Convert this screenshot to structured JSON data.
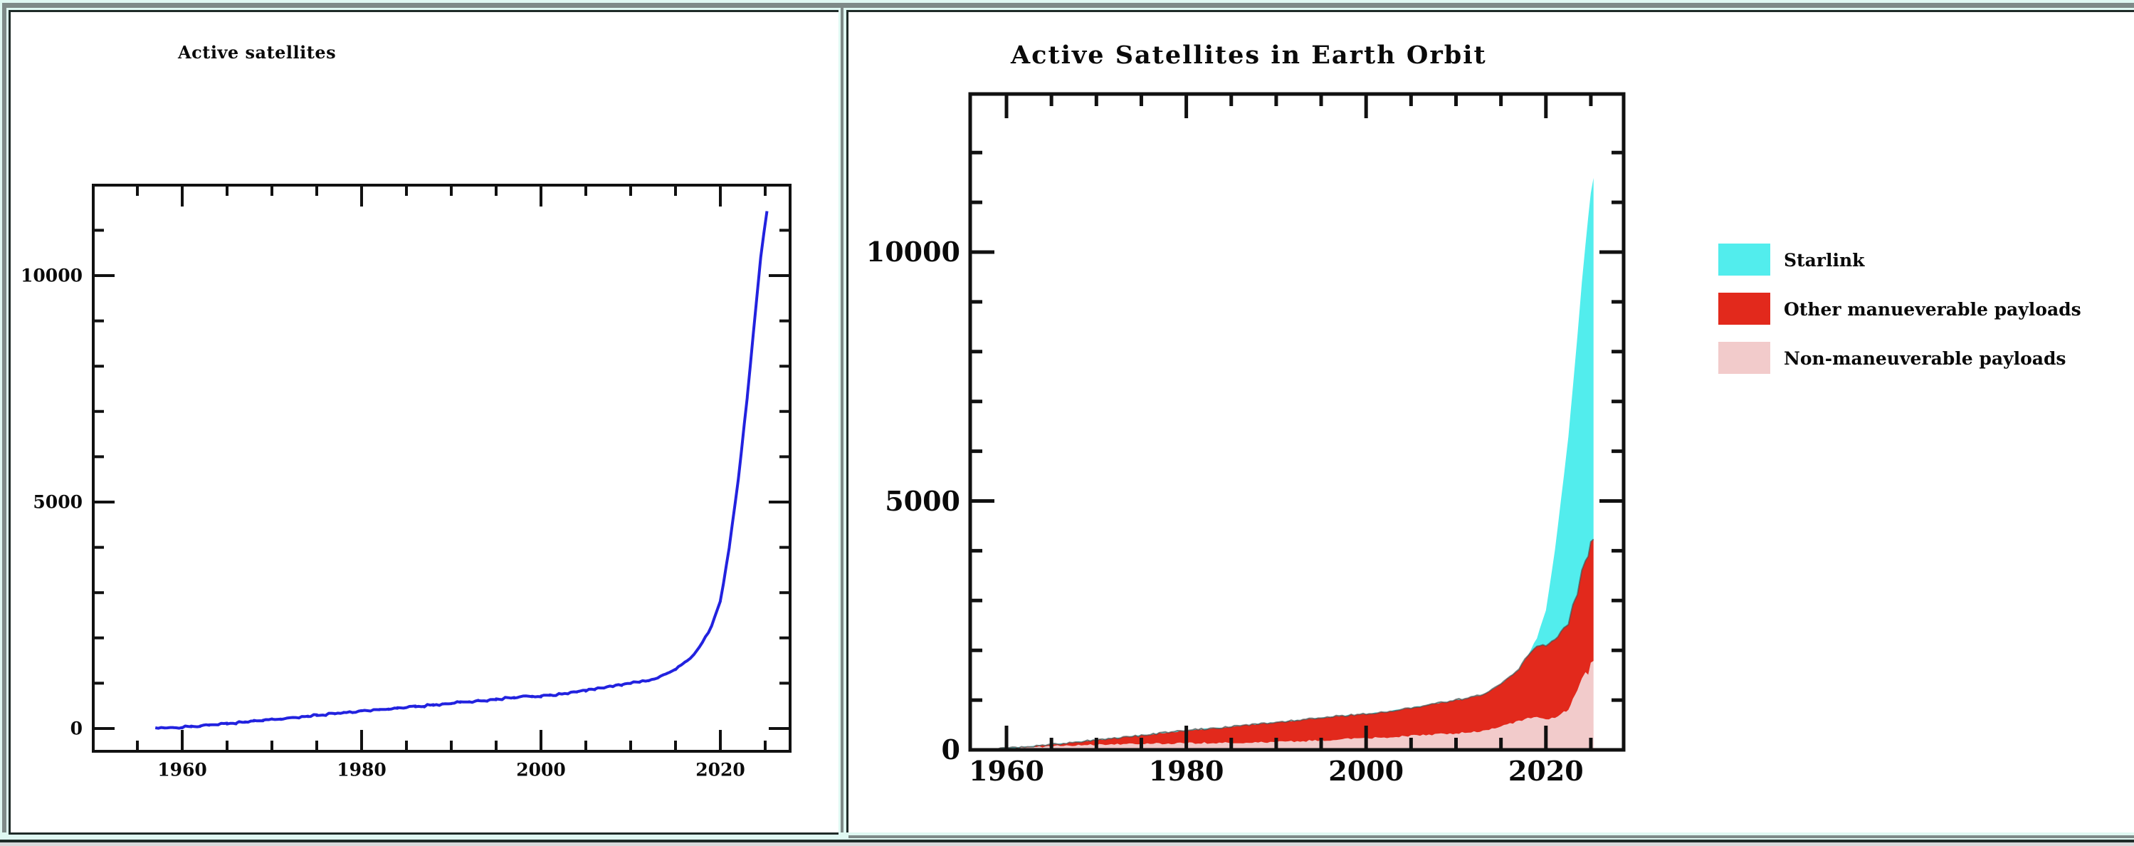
{
  "colors": {
    "background": "#dff8f2",
    "screen_frame_gray": "#7e8a88",
    "window_border_dark": "#1f2b28",
    "bottom_strip_gray": "#d8dadb",
    "line_blue": "#2222df",
    "starlink_cyan": "#52eded",
    "other_red": "#e2291c",
    "non_maneuverable_pink": "#f2cbcb"
  },
  "left_window": {
    "title": "Active satellites",
    "chart_data": {
      "type": "line",
      "title": "Active satellites",
      "xlabel": "",
      "ylabel": "",
      "x_tick_labels": [
        "1960",
        "1980",
        "2000",
        "2020"
      ],
      "y_tick_labels": [
        "0",
        "5000",
        "10000"
      ],
      "xlim": [
        1950.1,
        2027.8
      ],
      "ylim": [
        -500,
        12000
      ],
      "grid": false,
      "series": [
        {
          "name": "active satellites",
          "color": "#2222df",
          "points": [
            [
              1957,
              5
            ],
            [
              1958,
              10
            ],
            [
              1959,
              18
            ],
            [
              1960,
              30
            ],
            [
              1961,
              45
            ],
            [
              1962,
              60
            ],
            [
              1963,
              75
            ],
            [
              1964,
              90
            ],
            [
              1965,
              105
            ],
            [
              1966,
              125
            ],
            [
              1967,
              148
            ],
            [
              1968,
              168
            ],
            [
              1969,
              185
            ],
            [
              1970,
              200
            ],
            [
              1971,
              215
            ],
            [
              1972,
              230
            ],
            [
              1973,
              250
            ],
            [
              1974,
              270
            ],
            [
              1975,
              290
            ],
            [
              1976,
              310
            ],
            [
              1977,
              330
            ],
            [
              1978,
              350
            ],
            [
              1979,
              370
            ],
            [
              1980,
              390
            ],
            [
              1981,
              405
            ],
            [
              1982,
              420
            ],
            [
              1983,
              435
            ],
            [
              1984,
              450
            ],
            [
              1985,
              470
            ],
            [
              1986,
              485
            ],
            [
              1987,
              500
            ],
            [
              1988,
              515
            ],
            [
              1989,
              535
            ],
            [
              1990,
              555
            ],
            [
              1991,
              575
            ],
            [
              1992,
              590
            ],
            [
              1993,
              605
            ],
            [
              1994,
              625
            ],
            [
              1995,
              645
            ],
            [
              1996,
              665
            ],
            [
              1997,
              685
            ],
            [
              1998,
              700
            ],
            [
              1999,
              710
            ],
            [
              2000,
              720
            ],
            [
              2001,
              740
            ],
            [
              2002,
              760
            ],
            [
              2003,
              780
            ],
            [
              2004,
              810
            ],
            [
              2005,
              845
            ],
            [
              2006,
              880
            ],
            [
              2007,
              910
            ],
            [
              2008,
              940
            ],
            [
              2009,
              970
            ],
            [
              2010,
              1000
            ],
            [
              2011,
              1030
            ],
            [
              2012,
              1060
            ],
            [
              2013,
              1110
            ],
            [
              2014,
              1200
            ],
            [
              2015,
              1320
            ],
            [
              2016,
              1450
            ],
            [
              2017,
              1620
            ],
            [
              2018,
              1900
            ],
            [
              2019,
              2250
            ],
            [
              2020,
              2800
            ],
            [
              2021,
              4000
            ],
            [
              2022,
              5500
            ],
            [
              2023,
              7300
            ],
            [
              2024,
              9400
            ],
            [
              2024.5,
              10400
            ],
            [
              2025.2,
              11430
            ]
          ]
        }
      ]
    }
  },
  "right_window": {
    "title": "Active Satellites in Earth Orbit",
    "chart_data": {
      "type": "area",
      "stacked": true,
      "title": "Active Satellites in Earth Orbit",
      "xlabel": "",
      "ylabel": "",
      "x_tick_labels": [
        "1960",
        "1980",
        "2000",
        "2020"
      ],
      "y_tick_labels": [
        "0",
        "5000",
        "10000"
      ],
      "xlim": [
        1956.0,
        2028.6
      ],
      "ylim": [
        0,
        13150
      ],
      "grid": false,
      "legend_position": "right",
      "years": [
        1957,
        1960,
        1963,
        1966,
        1969,
        1972,
        1975,
        1978,
        1981,
        1984,
        1987,
        1990,
        1993,
        1996,
        1999,
        2002,
        2005,
        2008,
        2011,
        2013,
        2015,
        2017,
        2018,
        2019,
        2020,
        2021,
        2022,
        2022.5,
        2023,
        2023.5,
        2024,
        2024.4,
        2024.7,
        2025,
        2025.3
      ],
      "series": [
        {
          "name": "Non-maneuverable payloads",
          "color": "#f2cbcb",
          "values": [
            3,
            25,
            55,
            80,
            100,
            110,
            122,
            131,
            138,
            143,
            148,
            160,
            175,
            200,
            225,
            250,
            280,
            310,
            345,
            385,
            470,
            575,
            640,
            660,
            620,
            640,
            760,
            800,
            1020,
            1180,
            1430,
            1560,
            1500,
            1750,
            1800
          ]
        },
        {
          "name": "Other manueverable payloads",
          "color": "#e2291c",
          "values": [
            2,
            5,
            20,
            45,
            85,
            120,
            168,
            219,
            267,
            307,
            352,
            395,
            430,
            465,
            485,
            510,
            565,
            630,
            685,
            725,
            850,
            1045,
            1260,
            1420,
            1480,
            1560,
            1680,
            1710,
            1880,
            1940,
            2170,
            2250,
            2400,
            2450,
            2450
          ]
        },
        {
          "name": "Starlink",
          "color": "#52eded",
          "values": [
            0,
            0,
            0,
            0,
            0,
            0,
            0,
            0,
            0,
            0,
            0,
            0,
            0,
            0,
            0,
            0,
            0,
            0,
            0,
            0,
            0,
            0,
            0,
            170,
            700,
            1800,
            3060,
            3790,
            4400,
            5180,
            5800,
            6340,
            6800,
            7000,
            7250
          ]
        }
      ],
      "legend": [
        {
          "label": "Starlink",
          "color": "#52eded"
        },
        {
          "label": "Other manueverable payloads",
          "color": "#e2291c"
        },
        {
          "label": "Non-maneuverable payloads",
          "color": "#f2cbcb"
        }
      ]
    }
  }
}
